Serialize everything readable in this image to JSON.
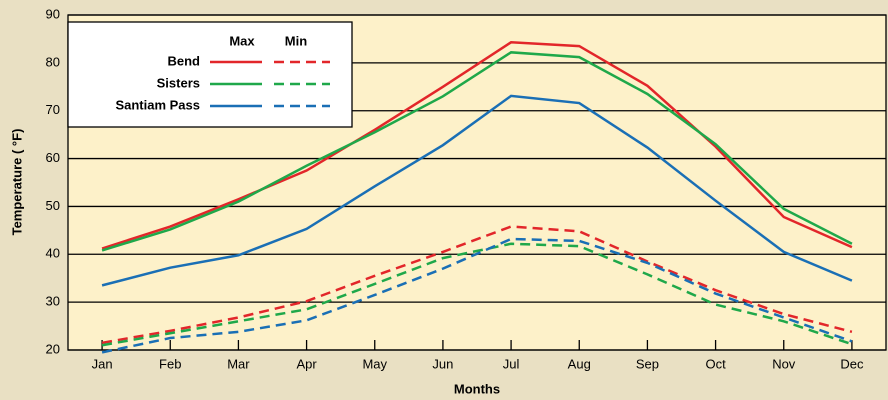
{
  "chart_data": {
    "type": "line",
    "y_label": "Temperature ( °F)",
    "x_label": "Months",
    "categories": [
      "Jan",
      "Feb",
      "Mar",
      "Apr",
      "May",
      "Jun",
      "Jul",
      "Aug",
      "Sep",
      "Oct",
      "Nov",
      "Dec"
    ],
    "legend_columns": [
      "Max",
      "Min"
    ],
    "series": [
      {
        "name": "Bend",
        "color": "#e2262a",
        "max": [
          41.2,
          45.8,
          51.5,
          57.5,
          66,
          75,
          84.3,
          83.5,
          75.2,
          62.5,
          47.8,
          41.5
        ],
        "min": [
          21.5,
          24,
          26.8,
          30.2,
          35.5,
          40.5,
          45.8,
          44.8,
          38.5,
          32.5,
          27.5,
          23.8
        ]
      },
      {
        "name": "Sisters",
        "color": "#1fa84a",
        "max": [
          40.8,
          45.2,
          51,
          58.5,
          65.5,
          73,
          82.2,
          81.2,
          73.5,
          63,
          49.5,
          42.2
        ],
        "min": [
          21,
          23.5,
          26,
          28.5,
          33.8,
          39.2,
          42.2,
          41.7,
          35.8,
          29.5,
          26,
          21.2
        ]
      },
      {
        "name": "Santiam Pass",
        "color": "#1a6fb5",
        "max": [
          33.5,
          37.2,
          39.8,
          45.3,
          54.2,
          62.8,
          73.1,
          71.6,
          62.3,
          51.2,
          40.5,
          34.5
        ],
        "min": [
          19.5,
          22.5,
          23.8,
          26.2,
          31.5,
          37,
          43.2,
          42.8,
          38.2,
          31.8,
          26.8,
          21.8
        ]
      }
    ],
    "ylim": [
      20,
      90
    ],
    "yticks": [
      20,
      30,
      40,
      50,
      60,
      70,
      80,
      90
    ],
    "grid": true
  }
}
